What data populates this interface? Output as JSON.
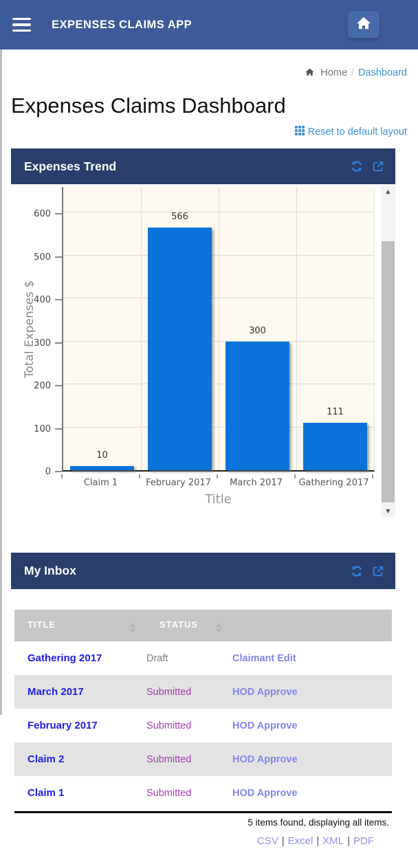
{
  "app": {
    "navbar_title": "EXPENSES CLAIMS APP"
  },
  "breadcrumb": {
    "home_label": "Home",
    "separator": "/",
    "current": "Dashboard"
  },
  "page": {
    "title": "Expenses Claims Dashboard",
    "reset_layout_label": "Reset to default layout"
  },
  "panels": {
    "expenses_trend": {
      "title": "Expenses Trend"
    },
    "my_inbox": {
      "title": "My Inbox"
    }
  },
  "chart_data": {
    "type": "bar",
    "categories": [
      "Claim 1",
      "February 2017",
      "March 2017",
      "Gathering 2017"
    ],
    "values": [
      10,
      566,
      300,
      111
    ],
    "title": "",
    "xlabel": "Title",
    "ylabel": "Total Expenses $",
    "ylim": [
      0,
      660
    ],
    "ytick_step": 100,
    "grid": true,
    "legend": "none",
    "bar_color": "#0a74da",
    "plot_bg": "#fdf9ee"
  },
  "inbox": {
    "columns": [
      {
        "label": "TITLE",
        "sortable": true
      },
      {
        "label": "STATUS",
        "sortable": true
      },
      {
        "label": "",
        "sortable": false
      }
    ],
    "rows": [
      {
        "title": "Gathering 2017",
        "status": "Draft",
        "action": "Claimant Edit"
      },
      {
        "title": "March 2017",
        "status": "Submitted",
        "action": "HOD Approve"
      },
      {
        "title": "February 2017",
        "status": "Submitted",
        "action": "HOD Approve"
      },
      {
        "title": "Claim 2",
        "status": "Submitted",
        "action": "HOD Approve"
      },
      {
        "title": "Claim 1",
        "status": "Submitted",
        "action": "HOD Approve"
      }
    ],
    "summary": "5 items found, displaying all items.",
    "export_separator": "|",
    "export_links": [
      "CSV",
      "Excel",
      "XML",
      "PDF"
    ]
  },
  "icons": {
    "scroll_up": "▲",
    "scroll_down": "▼"
  },
  "colors": {
    "navbar_bg": "#3e5b99",
    "panel_header_bg": "#293e6b",
    "panel_icon_blue": "#2e7fd8",
    "link_blue": "#3d8fd9",
    "claim_title_link": "#1e1ee6",
    "action_link": "#8585ee",
    "status_submitted": "#a13fae",
    "status_draft": "#7d7d7d",
    "table_header_bg": "#c6c6c6",
    "row_alt_bg": "#e3e3e3",
    "bar_blue": "#0a74da",
    "chart_bg": "#fdf9ee"
  }
}
